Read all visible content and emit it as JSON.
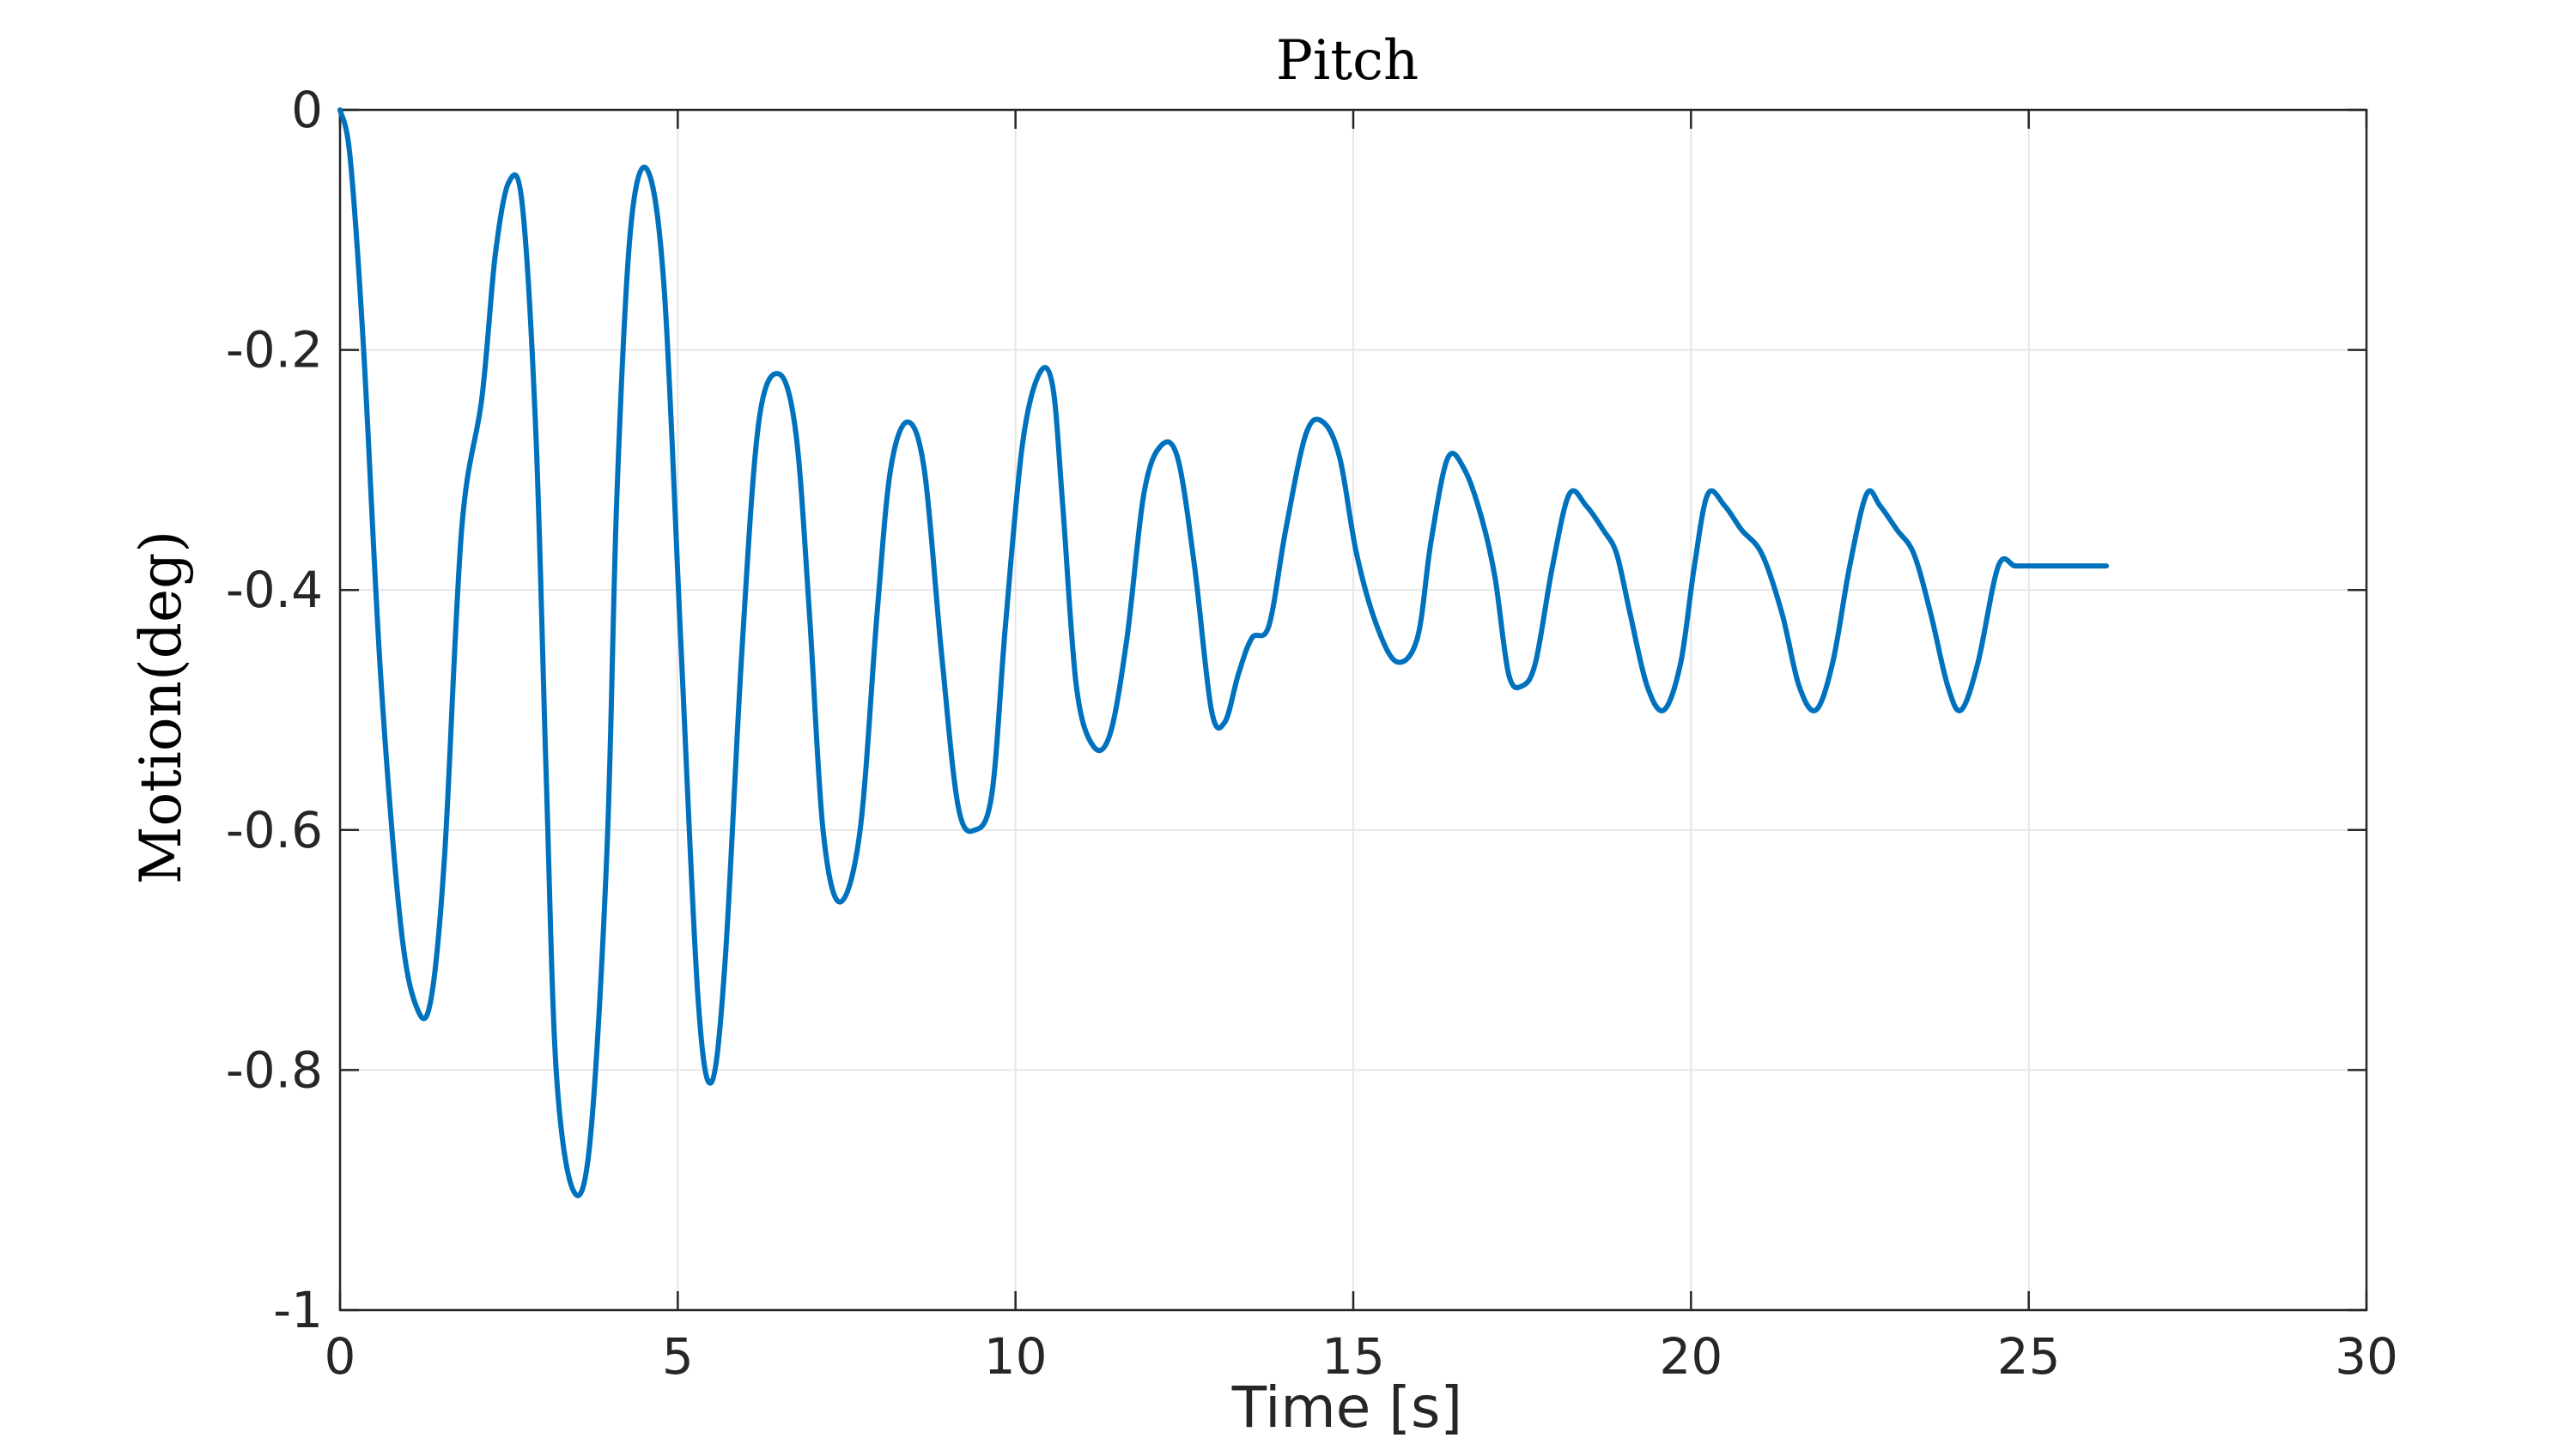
{
  "chart_data": {
    "type": "line",
    "title": "Pitch",
    "xlabel": "Time [s]",
    "ylabel": "Motion(deg)",
    "xlim": [
      0,
      30
    ],
    "ylim": [
      -1,
      0
    ],
    "xticks": [
      0,
      5,
      10,
      15,
      20,
      25,
      30
    ],
    "xtick_labels": [
      "0",
      "5",
      "10",
      "15",
      "20",
      "25",
      "30"
    ],
    "yticks": [
      0,
      -0.2,
      -0.4,
      -0.6,
      -0.8,
      -1
    ],
    "ytick_labels": [
      "0",
      "-0.2",
      "-0.4",
      "-0.6",
      "-0.8",
      "-1"
    ],
    "grid": true,
    "series": [
      {
        "color": "#0072bd",
        "x": [
          0,
          0.15,
          0.35,
          0.6,
          0.9,
          1.15,
          1.35,
          1.55,
          1.8,
          2.1,
          2.3,
          2.5,
          2.7,
          2.9,
          3.05,
          3.2,
          3.45,
          3.7,
          3.95,
          4.1,
          4.3,
          4.55,
          4.8,
          5.05,
          5.3,
          5.5,
          5.7,
          5.95,
          6.2,
          6.5,
          6.75,
          6.95,
          7.15,
          7.4,
          7.7,
          7.95,
          8.15,
          8.4,
          8.65,
          8.9,
          9.15,
          9.4,
          9.65,
          9.85,
          10.1,
          10.35,
          10.55,
          10.7,
          10.9,
          11.15,
          11.4,
          11.65,
          11.9,
          12.15,
          12.4,
          12.65,
          12.9,
          13.1,
          13.3,
          13.5,
          13.75,
          14.0,
          14.3,
          14.55,
          14.8,
          15.05,
          15.35,
          15.65,
          15.95,
          16.15,
          16.4,
          16.65,
          16.9,
          17.1,
          17.3,
          17.5,
          17.7,
          17.95,
          18.2,
          18.45,
          18.7,
          18.9,
          19.1,
          19.35,
          19.6,
          19.85,
          20.05,
          20.25,
          20.5,
          20.75,
          21.05,
          21.35,
          21.6,
          21.85,
          22.1,
          22.35,
          22.6,
          22.8,
          23.05,
          23.3,
          23.55,
          23.8,
          24.0,
          24.25,
          24.55,
          24.8,
          25.05,
          25.3,
          25.55,
          25.8,
          26.0,
          26.15
        ],
        "y": [
          0,
          -0.04,
          -0.2,
          -0.47,
          -0.68,
          -0.75,
          -0.74,
          -0.62,
          -0.35,
          -0.24,
          -0.12,
          -0.06,
          -0.08,
          -0.27,
          -0.55,
          -0.8,
          -0.9,
          -0.86,
          -0.62,
          -0.32,
          -0.1,
          -0.05,
          -0.15,
          -0.45,
          -0.74,
          -0.81,
          -0.71,
          -0.45,
          -0.26,
          -0.22,
          -0.27,
          -0.42,
          -0.6,
          -0.66,
          -0.6,
          -0.42,
          -0.3,
          -0.26,
          -0.3,
          -0.45,
          -0.58,
          -0.6,
          -0.57,
          -0.43,
          -0.28,
          -0.22,
          -0.23,
          -0.33,
          -0.48,
          -0.53,
          -0.52,
          -0.44,
          -0.32,
          -0.28,
          -0.29,
          -0.38,
          -0.5,
          -0.51,
          -0.47,
          -0.44,
          -0.43,
          -0.35,
          -0.27,
          -0.26,
          -0.29,
          -0.37,
          -0.43,
          -0.46,
          -0.44,
          -0.36,
          -0.29,
          -0.3,
          -0.34,
          -0.39,
          -0.47,
          -0.48,
          -0.46,
          -0.38,
          -0.32,
          -0.33,
          -0.35,
          -0.37,
          -0.42,
          -0.48,
          -0.5,
          -0.46,
          -0.38,
          -0.32,
          -0.33,
          -0.35,
          -0.37,
          -0.42,
          -0.48,
          -0.5,
          -0.46,
          -0.38,
          -0.32,
          -0.33,
          -0.35,
          -0.37,
          -0.42,
          -0.48,
          -0.5,
          -0.46,
          -0.38,
          -0.38,
          -0.38,
          -0.38,
          -0.38,
          -0.38,
          -0.38,
          -0.38
        ]
      }
    ]
  }
}
